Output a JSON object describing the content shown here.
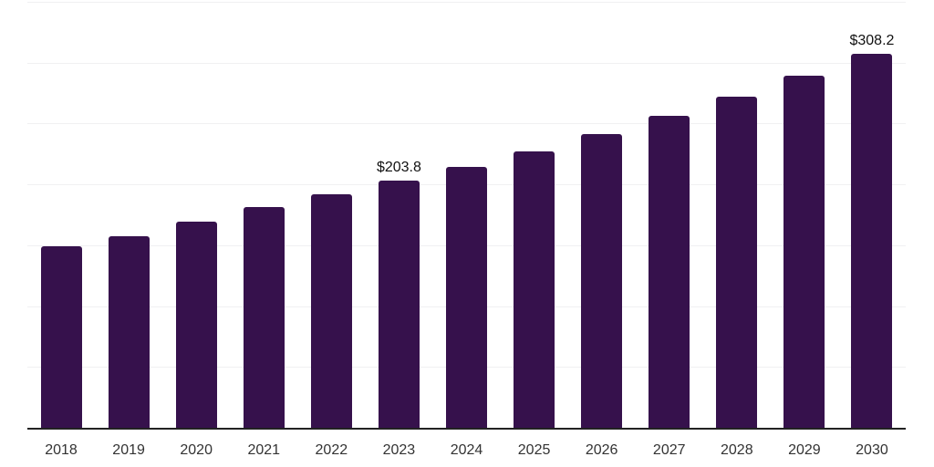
{
  "chart_data": {
    "type": "bar",
    "title": "",
    "xlabel": "",
    "ylabel": "",
    "categories": [
      "2018",
      "2019",
      "2020",
      "2021",
      "2022",
      "2023",
      "2024",
      "2025",
      "2026",
      "2027",
      "2028",
      "2029",
      "2030"
    ],
    "values": [
      150.0,
      158.3,
      170.3,
      182.1,
      192.4,
      203.8,
      215.3,
      228.0,
      242.3,
      257.0,
      273.0,
      290.3,
      308.2
    ],
    "annotations": [
      {
        "category": "2023",
        "text": "$203.8"
      },
      {
        "category": "2030",
        "text": "$308.2"
      }
    ],
    "ylim": [
      0,
      350
    ],
    "y_gridline_step": 50,
    "grid": "horizontal",
    "y_tick_labels_shown": false,
    "legend": "none",
    "colors": {
      "bar": "#36114c",
      "axis_line": "#222222",
      "gridline": "#f0f0f2",
      "tick_label": "#333333",
      "annotation": "#111111",
      "background": "#ffffff"
    }
  }
}
